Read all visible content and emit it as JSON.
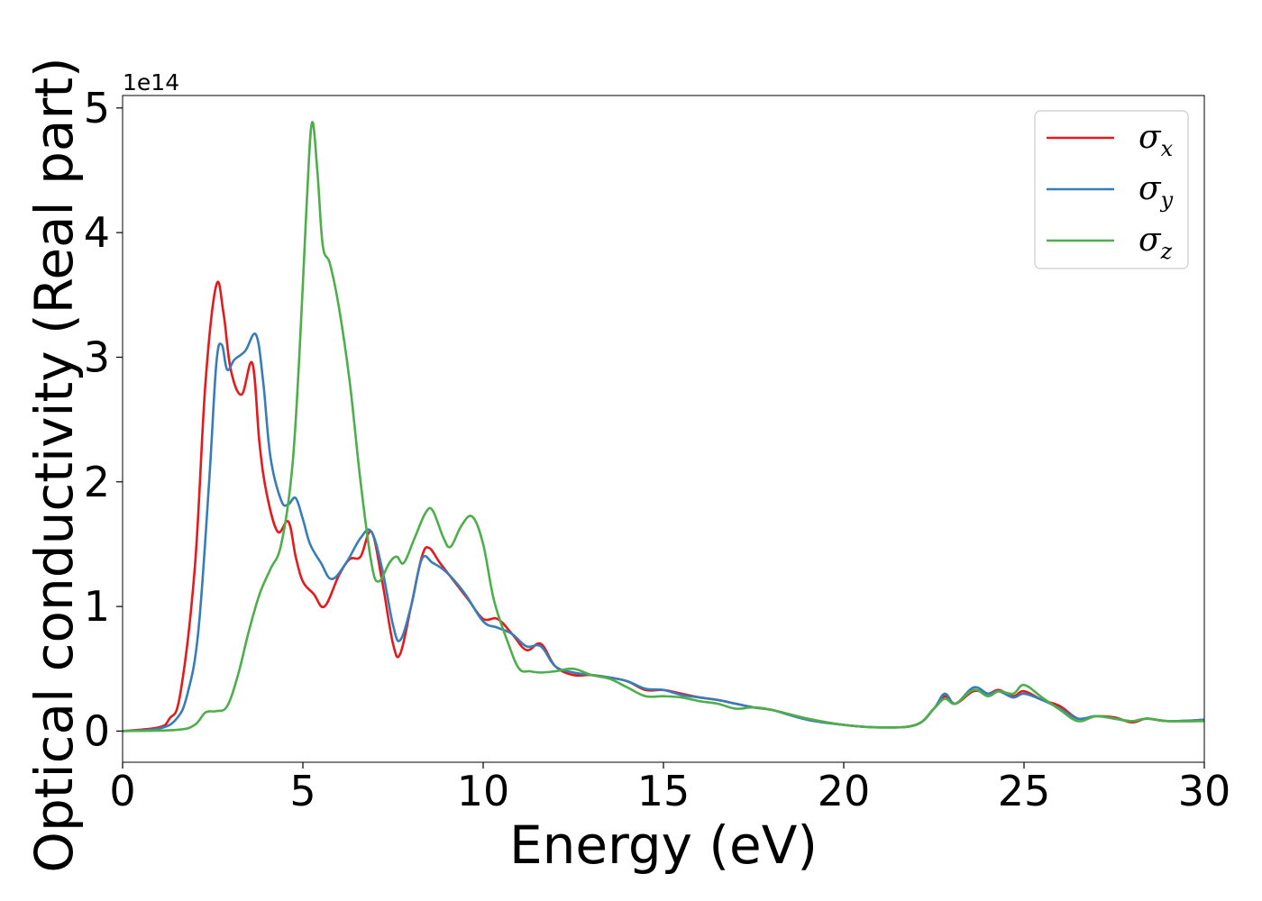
{
  "chart_data": {
    "type": "line",
    "title": "",
    "xlabel": "Energy (eV)",
    "ylabel": "Optical conductivity (Real part)",
    "y_offset_label": "1e14",
    "xlim": [
      0,
      30
    ],
    "ylim": [
      -0.25,
      5.1
    ],
    "x_ticks": [
      0,
      5,
      10,
      15,
      20,
      25,
      30
    ],
    "y_ticks": [
      0,
      1,
      2,
      3,
      4,
      5
    ],
    "grid": false,
    "legend_position": "top-right",
    "series": [
      {
        "name": "σx",
        "symbol": "σ",
        "subscript": "x",
        "color": "#e41a1c",
        "x": [
          0,
          1,
          1.3,
          1.6,
          2.0,
          2.3,
          2.6,
          2.8,
          3.0,
          3.3,
          3.6,
          3.8,
          4.0,
          4.3,
          4.6,
          4.8,
          5.0,
          5.3,
          5.6,
          6.0,
          6.3,
          6.6,
          6.9,
          7.2,
          7.5,
          7.7,
          8.0,
          8.3,
          8.5,
          8.8,
          9.2,
          9.6,
          10.0,
          10.4,
          10.8,
          11.2,
          11.6,
          12.0,
          12.5,
          13.0,
          13.5,
          14.0,
          14.5,
          15.0,
          15.5,
          16.0,
          16.5,
          17.0,
          17.5,
          18.0,
          19.0,
          20.0,
          21.0,
          22.0,
          22.5,
          22.8,
          23.1,
          23.6,
          24.0,
          24.3,
          24.7,
          25.0,
          25.5,
          26.0,
          26.5,
          27.0,
          27.5,
          28.0,
          28.4,
          29.0,
          30.0
        ],
        "values": [
          0.0,
          0.03,
          0.1,
          0.3,
          1.3,
          2.8,
          3.58,
          3.35,
          2.9,
          2.7,
          2.95,
          2.3,
          1.9,
          1.6,
          1.68,
          1.4,
          1.2,
          1.1,
          1.0,
          1.25,
          1.38,
          1.4,
          1.6,
          1.2,
          0.7,
          0.62,
          1.0,
          1.4,
          1.47,
          1.35,
          1.2,
          1.05,
          0.9,
          0.9,
          0.78,
          0.65,
          0.7,
          0.52,
          0.45,
          0.45,
          0.43,
          0.4,
          0.33,
          0.33,
          0.3,
          0.27,
          0.25,
          0.22,
          0.19,
          0.17,
          0.1,
          0.05,
          0.03,
          0.05,
          0.18,
          0.28,
          0.22,
          0.32,
          0.3,
          0.33,
          0.28,
          0.32,
          0.25,
          0.2,
          0.1,
          0.12,
          0.11,
          0.07,
          0.1,
          0.08,
          0.09
        ]
      },
      {
        "name": "σy",
        "symbol": "σ",
        "subscript": "y",
        "color": "#377eb8",
        "x": [
          0,
          1,
          1.5,
          1.8,
          2.1,
          2.4,
          2.6,
          2.75,
          2.9,
          3.1,
          3.4,
          3.7,
          3.9,
          4.1,
          4.4,
          4.6,
          4.8,
          5.0,
          5.2,
          5.5,
          5.8,
          6.2,
          6.6,
          6.9,
          7.2,
          7.5,
          7.7,
          8.0,
          8.3,
          8.6,
          9.0,
          9.5,
          10.0,
          10.4,
          10.8,
          11.2,
          11.6,
          12.0,
          12.5,
          13.0,
          13.5,
          14.0,
          14.5,
          15.0,
          15.5,
          16.0,
          16.5,
          17.0,
          17.5,
          18.0,
          19.0,
          20.0,
          21.0,
          22.0,
          22.5,
          22.8,
          23.1,
          23.6,
          24.0,
          24.3,
          24.7,
          25.0,
          25.5,
          26.0,
          26.5,
          27.0,
          27.5,
          28.0,
          28.4,
          29.0,
          30.0
        ],
        "values": [
          0.0,
          0.02,
          0.1,
          0.3,
          0.8,
          2.0,
          2.95,
          3.1,
          2.9,
          2.98,
          3.05,
          3.18,
          2.8,
          2.2,
          1.85,
          1.82,
          1.87,
          1.7,
          1.5,
          1.35,
          1.22,
          1.35,
          1.55,
          1.6,
          1.3,
          0.85,
          0.73,
          1.0,
          1.38,
          1.35,
          1.27,
          1.1,
          0.88,
          0.83,
          0.78,
          0.68,
          0.68,
          0.52,
          0.47,
          0.45,
          0.43,
          0.4,
          0.34,
          0.33,
          0.29,
          0.27,
          0.25,
          0.22,
          0.19,
          0.17,
          0.09,
          0.05,
          0.03,
          0.05,
          0.18,
          0.3,
          0.22,
          0.35,
          0.3,
          0.32,
          0.27,
          0.3,
          0.25,
          0.18,
          0.1,
          0.12,
          0.1,
          0.08,
          0.1,
          0.08,
          0.09
        ]
      },
      {
        "name": "σz",
        "symbol": "σ",
        "subscript": "z",
        "color": "#4daf4a",
        "x": [
          0,
          1.5,
          2.0,
          2.3,
          2.6,
          2.9,
          3.2,
          3.5,
          3.8,
          4.1,
          4.4,
          4.7,
          4.9,
          5.1,
          5.25,
          5.4,
          5.55,
          5.75,
          6.0,
          6.3,
          6.6,
          6.9,
          7.1,
          7.4,
          7.6,
          7.8,
          8.1,
          8.4,
          8.6,
          8.9,
          9.1,
          9.4,
          9.7,
          10.0,
          10.3,
          10.7,
          11.0,
          11.3,
          11.6,
          12.0,
          12.5,
          13.0,
          13.5,
          14.0,
          14.5,
          15.0,
          15.5,
          16.0,
          16.5,
          17.0,
          17.5,
          18.0,
          19.0,
          20.0,
          21.0,
          22.0,
          22.5,
          22.8,
          23.1,
          23.6,
          24.0,
          24.3,
          24.7,
          25.0,
          25.5,
          26.0,
          26.5,
          27.0,
          27.5,
          28.0,
          28.4,
          29.0,
          30.0
        ],
        "values": [
          0.0,
          0.01,
          0.05,
          0.15,
          0.16,
          0.2,
          0.45,
          0.8,
          1.1,
          1.3,
          1.5,
          2.1,
          3.0,
          4.2,
          4.88,
          4.5,
          3.9,
          3.75,
          3.4,
          2.8,
          2.0,
          1.35,
          1.2,
          1.35,
          1.4,
          1.35,
          1.55,
          1.75,
          1.77,
          1.55,
          1.48,
          1.65,
          1.72,
          1.5,
          1.05,
          0.7,
          0.5,
          0.48,
          0.47,
          0.48,
          0.5,
          0.45,
          0.42,
          0.35,
          0.28,
          0.28,
          0.27,
          0.24,
          0.22,
          0.18,
          0.19,
          0.17,
          0.1,
          0.05,
          0.03,
          0.05,
          0.18,
          0.26,
          0.22,
          0.33,
          0.28,
          0.32,
          0.3,
          0.37,
          0.27,
          0.17,
          0.08,
          0.12,
          0.1,
          0.08,
          0.1,
          0.08,
          0.08
        ]
      }
    ]
  }
}
